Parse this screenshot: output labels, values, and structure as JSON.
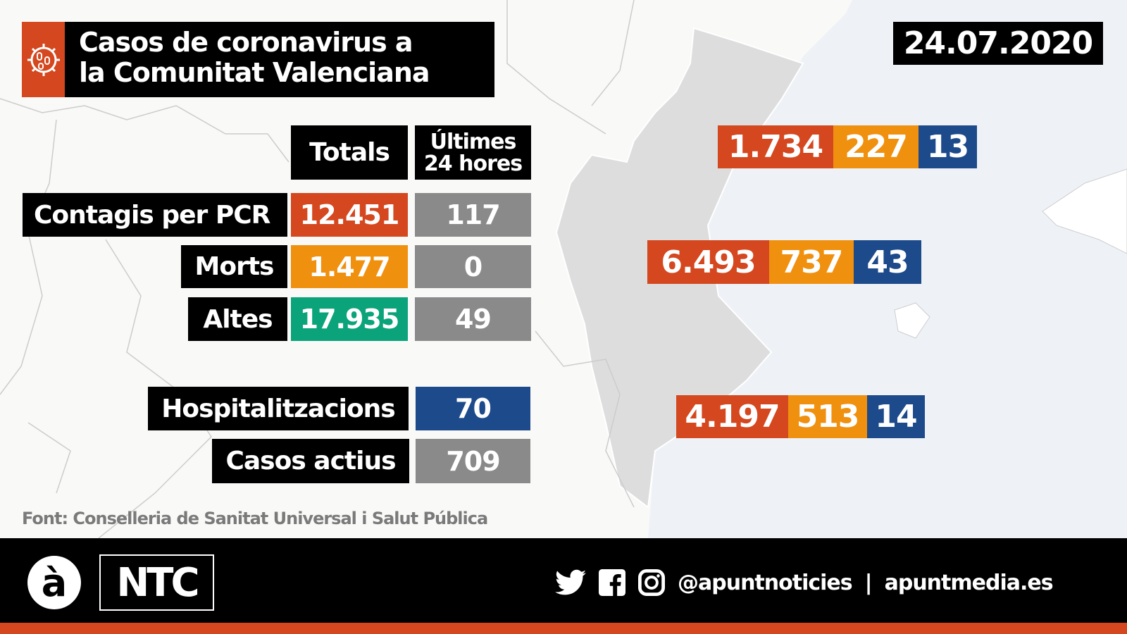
{
  "header": {
    "title_line1": "Casos de coronavirus a",
    "title_line2": "la Comunitat Valenciana",
    "date": "24.07.2020",
    "icon": "virus-icon"
  },
  "table": {
    "col_totals": "Totals",
    "col_last_line1": "Últimes",
    "col_last_line2": "24 hores",
    "rows": [
      {
        "label": "Contagis per PCR",
        "total": "12.451",
        "last24": "117",
        "color": "#d4471f"
      },
      {
        "label": "Morts",
        "total": "1.477",
        "last24": "0",
        "color": "#f0900f"
      },
      {
        "label": "Altes",
        "total": "17.935",
        "last24": "49",
        "color": "#0aa37a"
      }
    ],
    "hospitalitzacions": {
      "label": "Hospitalitzacions",
      "value": "70"
    },
    "casos_actius": {
      "label": "Casos actius",
      "value": "709"
    }
  },
  "provinces": [
    {
      "contagis": "1.734",
      "morts": "227",
      "hosp": "13"
    },
    {
      "contagis": "6.493",
      "morts": "737",
      "hosp": "43"
    },
    {
      "contagis": "4.197",
      "morts": "513",
      "hosp": "14"
    }
  ],
  "source": "Font: Conselleria de Sanitat Universal i Salut Pública",
  "footer": {
    "logo_a": "à",
    "logo_ntc": "NTC",
    "handle": "@apuntnoticies",
    "separator": "|",
    "website": "apuntmedia.es"
  },
  "colors": {
    "red": "#d4471f",
    "orange": "#f0900f",
    "green": "#0aa37a",
    "gray": "#8a8a8a",
    "blue": "#1d4a8a"
  }
}
